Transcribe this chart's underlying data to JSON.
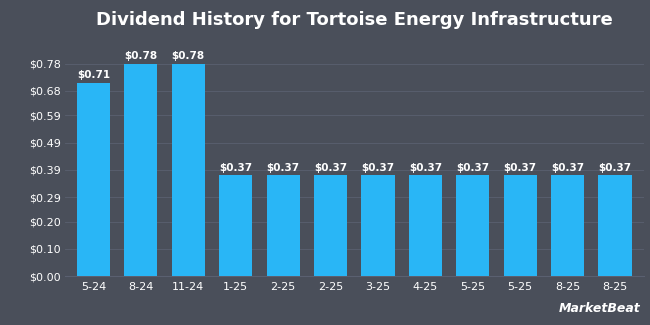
{
  "title": "Dividend History for Tortoise Energy Infrastructure",
  "categories": [
    "5-24",
    "8-24",
    "11-24",
    "1-25",
    "2-25",
    "2-25",
    "3-25",
    "4-25",
    "5-25",
    "5-25",
    "8-25",
    "8-25"
  ],
  "values": [
    0.71,
    0.78,
    0.78,
    0.37,
    0.37,
    0.37,
    0.37,
    0.37,
    0.37,
    0.37,
    0.37,
    0.37
  ],
  "bar_color": "#29b6f6",
  "background_color": "#4a4f5a",
  "text_color": "#ffffff",
  "grid_color": "#5a6070",
  "ylim": [
    0,
    0.87
  ],
  "yticks": [
    0.0,
    0.1,
    0.2,
    0.29,
    0.39,
    0.49,
    0.59,
    0.68,
    0.78
  ],
  "ytick_labels": [
    "$0.00",
    "$0.10",
    "$0.20",
    "$0.29",
    "$0.39",
    "$0.49",
    "$0.59",
    "$0.68",
    "$0.78"
  ],
  "title_fontsize": 13,
  "tick_fontsize": 8,
  "label_fontsize": 7.5,
  "bar_width": 0.7
}
